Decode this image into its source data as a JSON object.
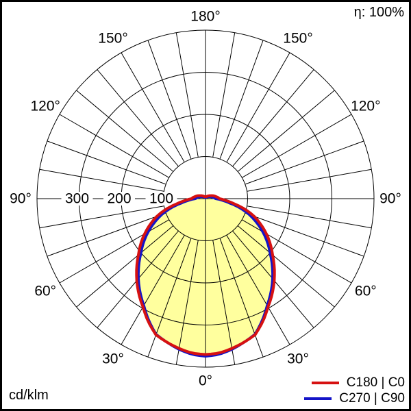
{
  "header": {
    "eta_label": "η: 100%"
  },
  "footer": {
    "unit_label": "cd/klm"
  },
  "legend": {
    "items": [
      {
        "label": "C180 | C0",
        "color": "#d61111"
      },
      {
        "label": "C270 | C90",
        "color": "#1414c8"
      }
    ]
  },
  "chart_data": {
    "type": "line",
    "coordinate_system": "polar",
    "description": "Luminous intensity distribution curve (polar photometric diagram), 0° at nadir (bottom), values in cd/klm",
    "unit": "cd/klm",
    "efficiency": "η: 100%",
    "angle_labels_deg": [
      0,
      30,
      60,
      90,
      120,
      150,
      180
    ],
    "radial_rings": [
      100,
      200,
      300,
      400
    ],
    "radial_tick_labels": [
      300,
      200,
      100
    ],
    "radial_max": 400,
    "spoke_step_deg": 10,
    "grid_on": true,
    "fill_color": "#ffff9e",
    "gamma_deg": [
      0,
      5,
      10,
      15,
      20,
      25,
      30,
      35,
      40,
      45,
      50,
      55,
      60,
      65,
      70,
      75,
      80,
      85,
      90,
      95,
      100,
      110,
      120,
      135,
      150,
      165,
      180
    ],
    "series": [
      {
        "name": "C180 | C0",
        "color": "#d61111",
        "values": [
          370,
          368,
          361,
          353,
          344,
          322,
          297,
          276,
          254,
          231,
          208,
          188,
          167,
          145,
          123,
          97,
          69,
          48,
          33,
          30,
          26,
          20,
          14,
          9,
          6,
          5,
          5
        ]
      },
      {
        "name": "C270 | C90",
        "color": "#1414c8",
        "values": [
          374,
          371,
          363,
          353,
          343,
          319,
          293,
          271,
          248,
          224,
          200,
          179,
          157,
          134,
          111,
          85,
          57,
          38,
          24,
          21,
          18,
          13,
          9,
          6,
          4,
          3,
          2
        ]
      }
    ],
    "legend_position": "bottom-right"
  },
  "style": {
    "grid_color": "#000000",
    "text_color": "#000000",
    "background": "#ffffff",
    "border_color": "#000000",
    "curve_stroke_width": 4,
    "grid_stroke_width": 1
  }
}
